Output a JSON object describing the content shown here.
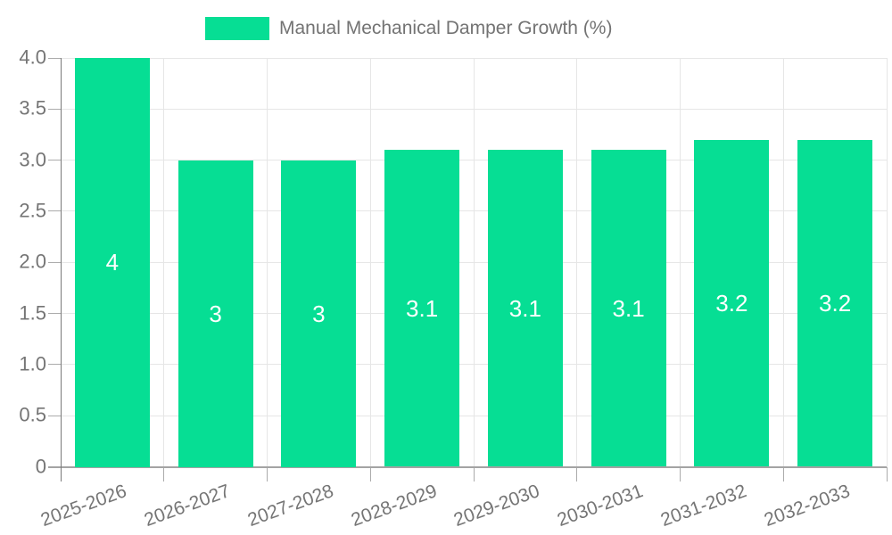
{
  "chart_data": {
    "type": "bar",
    "legend": {
      "position": "top",
      "label": "Manual Mechanical Damper Growth (%)"
    },
    "categories": [
      "2025-2026",
      "2026-2027",
      "2027-2028",
      "2028-2029",
      "2029-2030",
      "2030-2031",
      "2031-2032",
      "2032-2033"
    ],
    "series": [
      {
        "name": "Manual Mechanical Damper Growth (%)",
        "values": [
          4,
          3,
          3,
          3.1,
          3.1,
          3.1,
          3.2,
          3.2
        ]
      }
    ],
    "bar_labels": [
      "4",
      "3",
      "3",
      "3.1",
      "3.1",
      "3.1",
      "3.2",
      "3.2"
    ],
    "xlabel": "",
    "ylabel": "",
    "ylim": [
      0,
      4
    ],
    "ytick_step": 0.5,
    "ytick_labels": [
      "0",
      "0.5",
      "1.0",
      "1.5",
      "2.0",
      "2.5",
      "3.0",
      "3.5",
      "4.0"
    ],
    "grid": true,
    "colors": {
      "bar": "#06DE94",
      "grid": "#e6e6e6",
      "axis_line": "#a3a3a3",
      "y_axis_line": "#7a7a7a",
      "tick_mark": "#ababab",
      "tick_text": "#757575",
      "legend_text": "#737373",
      "bar_label_text": "#ffffff",
      "background": "#ffffff"
    }
  }
}
